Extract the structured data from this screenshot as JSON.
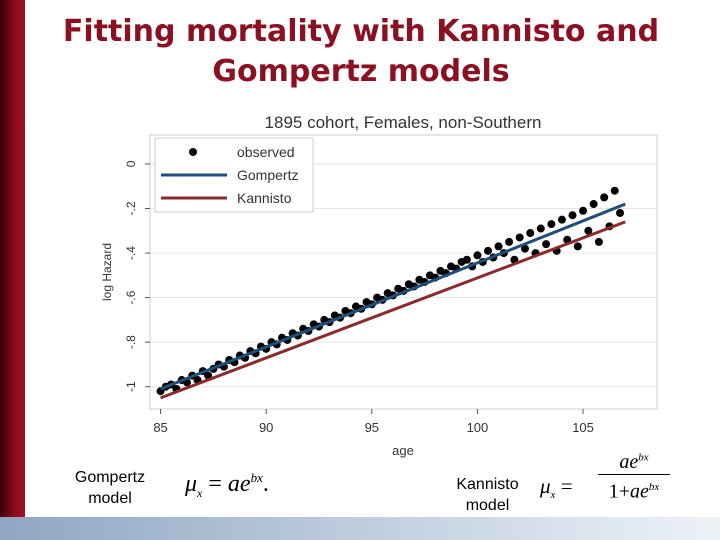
{
  "slide": {
    "title_line1": "Fitting mortality with Kannisto and",
    "title_line2": "Gompertz models"
  },
  "formulas": {
    "gompertz_label_line1": "Gompertz",
    "gompertz_label_line2": "model",
    "gompertz_formula": "μx = ae^bx",
    "kannisto_label_line1": "Kannisto",
    "kannisto_label_line2": "model",
    "kannisto_formula": "μx = ae^bx / (1 + ae^bx)"
  },
  "colors": {
    "title": "#8b1022",
    "observed": "#000000",
    "gompertz": "#1f4e79",
    "kannisto": "#8b2a2a"
  },
  "chart_data": {
    "type": "scatter",
    "title": "1895 cohort, Females, non-Southern",
    "xlabel": "age",
    "ylabel": "log Hazard",
    "xlim": [
      84.5,
      108.5
    ],
    "ylim": [
      -1.1,
      0.13
    ],
    "xticks": [
      85,
      90,
      95,
      100,
      105
    ],
    "yticks": [
      0,
      -0.2,
      -0.4,
      -0.6,
      -0.8,
      -1
    ],
    "ytick_labels": [
      "0",
      "-.2",
      "-.4",
      "-.6",
      "-.8",
      "-1"
    ],
    "grid": true,
    "legend_position": "top-left",
    "series": [
      {
        "name": "observed",
        "kind": "points",
        "x": [
          85.0,
          85.25,
          85.5,
          85.75,
          86.0,
          86.25,
          86.5,
          86.75,
          87.0,
          87.25,
          87.5,
          87.75,
          88.0,
          88.25,
          88.5,
          88.75,
          89.0,
          89.25,
          89.5,
          89.75,
          90.0,
          90.25,
          90.5,
          90.75,
          91.0,
          91.25,
          91.5,
          91.75,
          92.0,
          92.25,
          92.5,
          92.75,
          93.0,
          93.25,
          93.5,
          93.75,
          94.0,
          94.25,
          94.5,
          94.75,
          95.0,
          95.25,
          95.5,
          95.75,
          96.0,
          96.25,
          96.5,
          96.75,
          97.0,
          97.25,
          97.5,
          97.75,
          98.0,
          98.25,
          98.5,
          98.75,
          99.0,
          99.25,
          99.5,
          99.75,
          100.0,
          100.25,
          100.5,
          100.75,
          101.0,
          101.25,
          101.5,
          101.75,
          102.0,
          102.25,
          102.5,
          102.75,
          103.0,
          103.25,
          103.5,
          103.75,
          104.0,
          104.25,
          104.5,
          104.75,
          105.0,
          105.25,
          105.5,
          105.75,
          106.0,
          106.25,
          106.5,
          106.75
        ],
        "y": [
          -1.02,
          -1.0,
          -0.99,
          -1.01,
          -0.97,
          -0.98,
          -0.95,
          -0.97,
          -0.93,
          -0.95,
          -0.92,
          -0.9,
          -0.91,
          -0.88,
          -0.89,
          -0.86,
          -0.87,
          -0.84,
          -0.85,
          -0.82,
          -0.83,
          -0.8,
          -0.81,
          -0.78,
          -0.79,
          -0.76,
          -0.77,
          -0.74,
          -0.75,
          -0.72,
          -0.73,
          -0.7,
          -0.71,
          -0.68,
          -0.69,
          -0.66,
          -0.67,
          -0.64,
          -0.65,
          -0.62,
          -0.63,
          -0.6,
          -0.61,
          -0.58,
          -0.59,
          -0.56,
          -0.57,
          -0.54,
          -0.55,
          -0.52,
          -0.53,
          -0.5,
          -0.51,
          -0.48,
          -0.49,
          -0.46,
          -0.47,
          -0.44,
          -0.43,
          -0.46,
          -0.41,
          -0.44,
          -0.39,
          -0.42,
          -0.37,
          -0.4,
          -0.35,
          -0.43,
          -0.33,
          -0.38,
          -0.31,
          -0.4,
          -0.29,
          -0.36,
          -0.27,
          -0.39,
          -0.25,
          -0.34,
          -0.23,
          -0.37,
          -0.21,
          -0.3,
          -0.18,
          -0.35,
          -0.15,
          -0.28,
          -0.12,
          -0.22
        ]
      },
      {
        "name": "Gompertz",
        "kind": "line",
        "x": [
          85,
          107
        ],
        "y": [
          -1.01,
          -0.18
        ]
      },
      {
        "name": "Kannisto",
        "kind": "line",
        "x": [
          85,
          107
        ],
        "y": [
          -1.05,
          -0.26
        ]
      }
    ]
  }
}
